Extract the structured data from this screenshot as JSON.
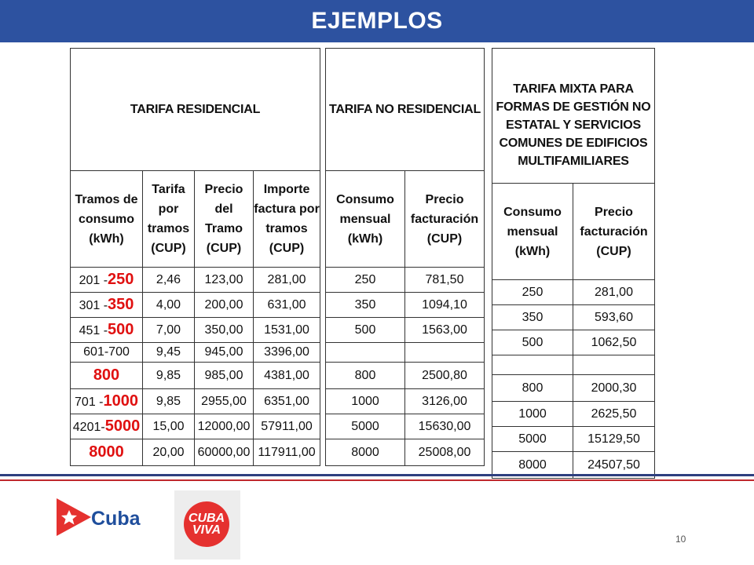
{
  "banner": {
    "title": "EJEMPLOS",
    "color": "#2d52a0"
  },
  "residencial": {
    "title": "TARIFA RESIDENCIAL",
    "headers": [
      "Tramos de consumo (kWh)",
      "Tarifa por tramos (CUP)",
      "Precio del Tramo (CUP)",
      "Importe factura por tramos (CUP)"
    ],
    "rows": [
      {
        "tramo_pre": "201 -",
        "tramo_hl": "250",
        "tarifa": "2,46",
        "precio": "123,00",
        "importe": "281,00"
      },
      {
        "tramo_pre": "301 -",
        "tramo_hl": "350",
        "tarifa": "4,00",
        "precio": "200,00",
        "importe": "631,00"
      },
      {
        "tramo_pre": "451 -",
        "tramo_hl": "500",
        "tarifa": "7,00",
        "precio": "350,00",
        "importe": "1531,00"
      },
      {
        "tramo_pre": "601-700",
        "tramo_hl": "",
        "tarifa": "9,45",
        "precio": "945,00",
        "importe": "3396,00"
      },
      {
        "tramo_pre": "",
        "tramo_hl": "800",
        "tarifa": "9,85",
        "precio": "985,00",
        "importe": "4381,00"
      },
      {
        "tramo_pre": "701 -",
        "tramo_hl": "1000",
        "tarifa": "9,85",
        "precio": "2955,00",
        "importe": "6351,00"
      },
      {
        "tramo_pre": "4201-",
        "tramo_hl": "5000",
        "tarifa": "15,00",
        "precio": "12000,00",
        "importe": "57911,00"
      },
      {
        "tramo_pre": "",
        "tramo_hl": "8000",
        "tarifa": "20,00",
        "precio": "60000,00",
        "importe": "117911,00"
      }
    ]
  },
  "no_residencial": {
    "title": "TARIFA NO RESIDENCIAL",
    "headers": [
      "Consumo mensual (kWh)",
      "Precio facturación (CUP)"
    ],
    "rows": [
      {
        "consumo": "250",
        "precio": "781,50"
      },
      {
        "consumo": "350",
        "precio": "1094,10"
      },
      {
        "consumo": "500",
        "precio": "1563,00"
      },
      {
        "consumo": "",
        "precio": ""
      },
      {
        "consumo": "800",
        "precio": "2500,80"
      },
      {
        "consumo": "1000",
        "precio": "3126,00"
      },
      {
        "consumo": "5000",
        "precio": "15630,00"
      },
      {
        "consumo": "8000",
        "precio": "25008,00"
      }
    ]
  },
  "mixta": {
    "title_lines": [
      "TARIFA MIXTA PARA",
      "FORMAS DE GESTIÓN NO",
      "ESTATAL Y SERVICIOS",
      "COMUNES DE EDIFICIOS",
      "MULTIFAMILIARES"
    ],
    "headers": [
      "Consumo mensual (kWh)",
      "Precio facturación (CUP)"
    ],
    "rows": [
      {
        "consumo": "250",
        "precio": "281,00"
      },
      {
        "consumo": "350",
        "precio": "593,60"
      },
      {
        "consumo": "500",
        "precio": "1062,50"
      },
      {
        "consumo": "",
        "precio": ""
      },
      {
        "consumo": "800",
        "precio": "2000,30"
      },
      {
        "consumo": "1000",
        "precio": "2625,50"
      },
      {
        "consumo": "5000",
        "precio": "15129,50"
      },
      {
        "consumo": "8000",
        "precio": "24507,50"
      }
    ]
  },
  "footer": {
    "cuba_logo_text": "Cuba",
    "cuba_viva_line1": "CUBA",
    "cuba_viva_line2": "VIVA",
    "page_number": "10"
  },
  "colors": {
    "highlight": "#e01010",
    "line_blue": "#2d3f7f",
    "line_red": "#c0282d"
  }
}
